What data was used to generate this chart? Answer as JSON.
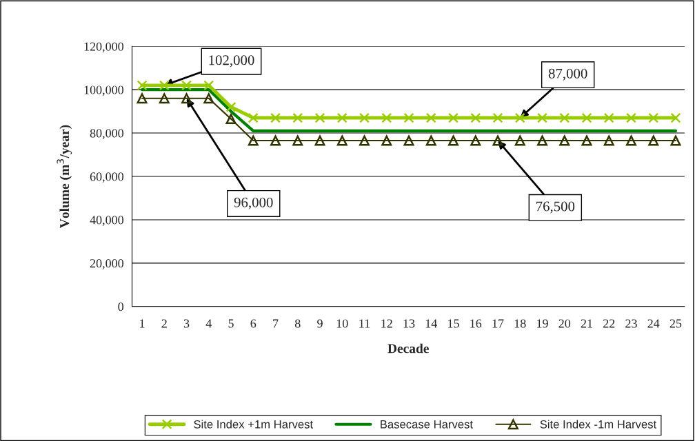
{
  "chart_data": {
    "type": "line",
    "xlabel": "Decade",
    "ylabel": "Volume (m$^{3}$/year)",
    "categories": [
      "1",
      "2",
      "3",
      "4",
      "5",
      "6",
      "7",
      "8",
      "9",
      "10",
      "11",
      "12",
      "13",
      "14",
      "15",
      "16",
      "17",
      "18",
      "19",
      "20",
      "21",
      "22",
      "23",
      "24",
      "25"
    ],
    "series": [
      {
        "name": "Site Index +1m Harvest",
        "color": "#99cc00",
        "marker": "cross",
        "values": [
          102000,
          102000,
          102000,
          102000,
          92000,
          87000,
          87000,
          87000,
          87000,
          87000,
          87000,
          87000,
          87000,
          87000,
          87000,
          87000,
          87000,
          87000,
          87000,
          87000,
          87000,
          87000,
          87000,
          87000,
          87000
        ]
      },
      {
        "name": "Basecase Harvest",
        "color": "#008000",
        "marker": "none",
        "values": [
          100000,
          100000,
          100000,
          100000,
          90000,
          81000,
          81000,
          81000,
          81000,
          81000,
          81000,
          81000,
          81000,
          81000,
          81000,
          81000,
          81000,
          81000,
          81000,
          81000,
          81000,
          81000,
          81000,
          81000,
          81000
        ]
      },
      {
        "name": "Site Index -1m Harvest",
        "color": "#333300",
        "marker": "triangle",
        "values": [
          96000,
          96000,
          96000,
          96000,
          86500,
          76500,
          76500,
          76500,
          76500,
          76500,
          76500,
          76500,
          76500,
          76500,
          76500,
          76500,
          76500,
          76500,
          76500,
          76500,
          76500,
          76500,
          76500,
          76500,
          76500
        ]
      }
    ],
    "ylim": [
      0,
      120000
    ],
    "yticks": [
      {
        "value": 0,
        "label": "0"
      },
      {
        "value": 20000,
        "label": "20,000"
      },
      {
        "value": 40000,
        "label": "40,000"
      },
      {
        "value": 60000,
        "label": "60,000"
      },
      {
        "value": 80000,
        "label": "80,000"
      },
      {
        "value": 100000,
        "label": "100,000"
      },
      {
        "value": 120000,
        "label": "120,000"
      }
    ],
    "grid": "y",
    "legend": "bottom",
    "annotations": [
      {
        "text": "102,000",
        "x": "2",
        "y": 102000
      },
      {
        "text": "96,000",
        "x": "3",
        "y": 96000
      },
      {
        "text": "87,000",
        "x": "18",
        "y": 87000
      },
      {
        "text": "76,500",
        "x": "17",
        "y": 76500
      }
    ]
  }
}
